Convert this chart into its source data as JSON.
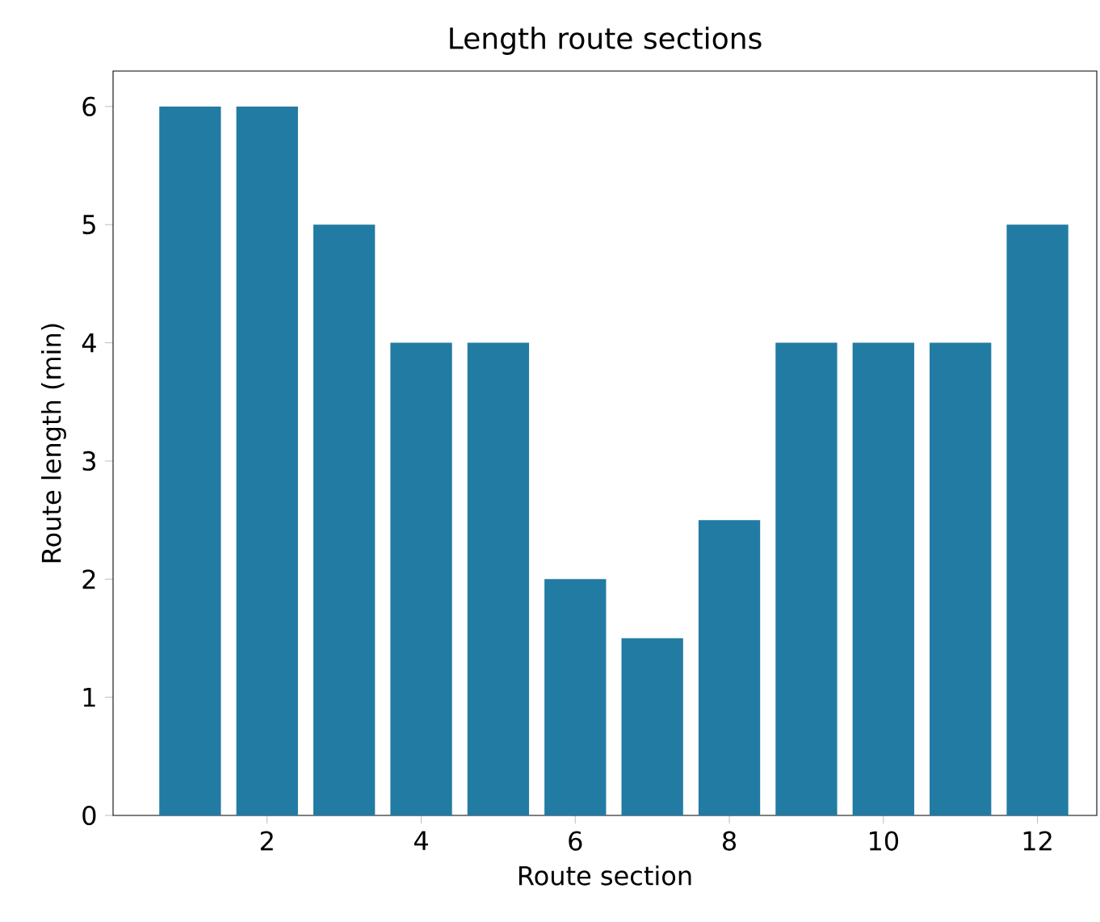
{
  "chart_data": {
    "type": "bar",
    "title": "Length route sections",
    "xlabel": "Route section",
    "ylabel": "Route length (min)",
    "x": [
      1,
      2,
      3,
      4,
      5,
      6,
      7,
      8,
      9,
      10,
      11,
      12
    ],
    "values": [
      6,
      6,
      5,
      4,
      4,
      2,
      1.5,
      2.5,
      4,
      4,
      4,
      5
    ],
    "color": "#227ba2",
    "xlim": [
      0,
      12.77
    ],
    "xticks": [
      2,
      4,
      6,
      8,
      10,
      12
    ],
    "ylim": [
      0,
      6.3
    ],
    "yticks": [
      0,
      1,
      2,
      3,
      4,
      5,
      6
    ]
  }
}
